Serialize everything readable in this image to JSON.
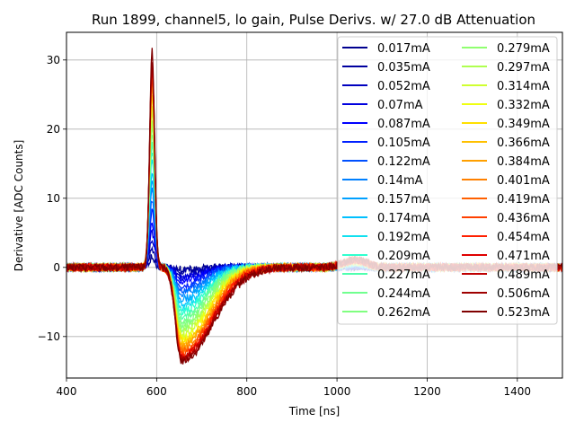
{
  "chart_data": {
    "type": "line",
    "title": "Run 1899, channel5, lo gain, Pulse Derivs. w/ 27.0 dB Attenuation",
    "xlabel": "Time [ns]",
    "ylabel": "Derivative [ADC Counts]",
    "xlim": [
      400,
      1500
    ],
    "ylim": [
      -16,
      34
    ],
    "xticks": [
      400,
      600,
      800,
      1000,
      1200,
      1400
    ],
    "xtick_labels": [
      "400",
      "600",
      "800",
      "1000",
      "1200",
      "1400"
    ],
    "yticks": [
      -10,
      0,
      10,
      20,
      30
    ],
    "ytick_labels": [
      "−10",
      "0",
      "10",
      "20",
      "30"
    ],
    "grid": true,
    "legend_position": "top-right",
    "legend_columns": 2,
    "pulse_shape": {
      "rise_start_ns": 565,
      "peak_time_ns": 590,
      "zero_cross_ns": 620,
      "trough_time_ns": 655,
      "secondary_bump_ns": 1010
    },
    "series": [
      {
        "name": "0.017mA",
        "color": "#00008f",
        "peak": 1.5,
        "trough": -0.3
      },
      {
        "name": "0.035mA",
        "color": "#00009f",
        "peak": 2.5,
        "trough": -0.6
      },
      {
        "name": "0.052mA",
        "color": "#0000bf",
        "peak": 4.0,
        "trough": -1.0
      },
      {
        "name": "0.07mA",
        "color": "#0000df",
        "peak": 5.0,
        "trough": -1.5
      },
      {
        "name": "0.087mA",
        "color": "#0000ff",
        "peak": 6.5,
        "trough": -2.0
      },
      {
        "name": "0.105mA",
        "color": "#0020ff",
        "peak": 8.0,
        "trough": -2.6
      },
      {
        "name": "0.122mA",
        "color": "#0050ff",
        "peak": 9.5,
        "trough": -3.2
      },
      {
        "name": "0.14mA",
        "color": "#0080ff",
        "peak": 11.0,
        "trough": -3.8
      },
      {
        "name": "0.157mA",
        "color": "#00a0ff",
        "peak": 12.5,
        "trough": -4.5
      },
      {
        "name": "0.174mA",
        "color": "#00c0ff",
        "peak": 14.0,
        "trough": -5.1
      },
      {
        "name": "0.192mA",
        "color": "#10e0ef",
        "peak": 15.5,
        "trough": -5.8
      },
      {
        "name": "0.209mA",
        "color": "#30ffcf",
        "peak": 17.0,
        "trough": -6.4
      },
      {
        "name": "0.227mA",
        "color": "#50ffaf",
        "peak": 18.0,
        "trough": -7.0
      },
      {
        "name": "0.244mA",
        "color": "#70ff8f",
        "peak": 19.5,
        "trough": -7.6
      },
      {
        "name": "0.262mA",
        "color": "#80ff80",
        "peak": 20.5,
        "trough": -8.2
      },
      {
        "name": "0.279mA",
        "color": "#90ff70",
        "peak": 21.5,
        "trough": -8.8
      },
      {
        "name": "0.297mA",
        "color": "#afff50",
        "peak": 22.5,
        "trough": -9.3
      },
      {
        "name": "0.314mA",
        "color": "#cfff30",
        "peak": 23.5,
        "trough": -9.8
      },
      {
        "name": "0.332mA",
        "color": "#efff10",
        "peak": 24.5,
        "trough": -10.3
      },
      {
        "name": "0.349mA",
        "color": "#ffe000",
        "peak": 25.0,
        "trough": -10.7
      },
      {
        "name": "0.366mA",
        "color": "#ffc000",
        "peak": 26.0,
        "trough": -11.1
      },
      {
        "name": "0.384mA",
        "color": "#ffa000",
        "peak": 26.5,
        "trough": -11.5
      },
      {
        "name": "0.401mA",
        "color": "#ff8000",
        "peak": 27.0,
        "trough": -11.9
      },
      {
        "name": "0.419mA",
        "color": "#ff6000",
        "peak": 27.5,
        "trough": -12.2
      },
      {
        "name": "0.436mA",
        "color": "#ff4000",
        "peak": 28.0,
        "trough": -12.5
      },
      {
        "name": "0.454mA",
        "color": "#ff2000",
        "peak": 28.5,
        "trough": -12.8
      },
      {
        "name": "0.471mA",
        "color": "#df0000",
        "peak": 29.0,
        "trough": -13.0
      },
      {
        "name": "0.489mA",
        "color": "#bf0000",
        "peak": 29.5,
        "trough": -13.2
      },
      {
        "name": "0.506mA",
        "color": "#9f0000",
        "peak": 30.0,
        "trough": -13.4
      },
      {
        "name": "0.523mA",
        "color": "#800000",
        "peak": 31.5,
        "trough": -13.6
      }
    ]
  }
}
